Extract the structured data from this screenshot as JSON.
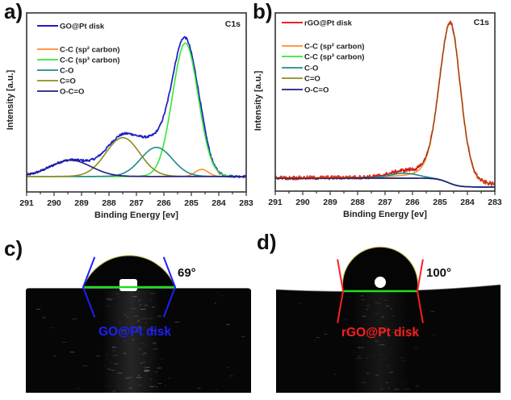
{
  "chart_data": [
    {
      "panel_label": "a)",
      "type": "line",
      "title": "C1s",
      "xlabel": "Binding Energy [ev]",
      "ylabel": "Intensity [a.u.]",
      "xlim": [
        291,
        283
      ],
      "ylim": [
        -0.11,
        1.16
      ],
      "x_reversed": true,
      "xticks": [
        291,
        290,
        289,
        288,
        287,
        286,
        285,
        284,
        283
      ],
      "x_minor_tick_step": 0.5,
      "yticks": [],
      "grid": false,
      "legend_position": "top-left",
      "background": {
        "type": "constant",
        "level": 0
      },
      "measured": {
        "name": "GO@Pt disk",
        "color": "#1d1dc6",
        "noise_amplitude": 0.008
      },
      "components": [
        {
          "name": "C-C (sp² carbon)",
          "color": "#ff8c2e",
          "center_ev": 284.62,
          "height": 0.05,
          "fwhm_ev": 0.55
        },
        {
          "name": "C-C (sp³ carbon)",
          "color": "#36e636",
          "center_ev": 285.22,
          "height": 0.945,
          "fwhm_ev": 1.1
        },
        {
          "name": "C-O",
          "color": "#1f8c8c",
          "center_ev": 286.27,
          "height": 0.206,
          "fwhm_ev": 1.35
        },
        {
          "name": "C=O",
          "color": "#8c8c22",
          "center_ev": 287.5,
          "height": 0.275,
          "fwhm_ev": 1.45
        },
        {
          "name": "O-C=O",
          "color": "#1c1c8c",
          "center_ev": 289.4,
          "height": 0.115,
          "fwhm_ev": 1.75
        }
      ],
      "fit_envelope": null
    },
    {
      "panel_label": "b)",
      "type": "line",
      "title": "C1s",
      "xlabel": "Binding Energy [ev]",
      "ylabel": "Intensity [a.u.]",
      "xlim": [
        291,
        283
      ],
      "ylim": [
        -0.025,
        1.06
      ],
      "x_reversed": true,
      "xticks": [
        291,
        290,
        289,
        288,
        287,
        286,
        285,
        284,
        283
      ],
      "x_minor_tick_step": 0.5,
      "yticks": [],
      "grid": false,
      "legend_position": "top-left",
      "background": {
        "type": "step",
        "high_ev_level": 0.054,
        "low_ev_level": 0,
        "center_ev": 284.7,
        "width_ev": 0.2
      },
      "measured": {
        "name": "rGO@Pt disk",
        "color": "#ee2020",
        "noise_amplitude": 0.012
      },
      "components": [
        {
          "name": "C-C (sp² carbon)",
          "color": "#ff8c2e",
          "center_ev": 284.62,
          "height": 0.98,
          "fwhm_ev": 0.92,
          "asymmetry": 0.04,
          "lorentz_fraction": 0.25
        },
        {
          "name": "C-C (sp³ carbon)",
          "color": "#36e636",
          "height": 0
        },
        {
          "name": "C-O",
          "color": "#1f8c8c",
          "center_ev": 286.3,
          "height": 0.03,
          "fwhm_ev": 1.2
        },
        {
          "name": "C=O",
          "color": "#8c8c22",
          "height": 0
        },
        {
          "name": "O-C=O",
          "color": "#1c1c8c",
          "height": 0
        }
      ],
      "fit_envelope": {
        "color": "#6a3812"
      }
    }
  ],
  "photos": [
    {
      "panel_label": "c)",
      "sample_label": "GO@Pt disk",
      "contact_angle_deg": 69,
      "contact_angle_text": "69°",
      "sample_label_color": "#1e1eff",
      "tangent_color": "#1e1eff",
      "baseline_color": "#22dd22"
    },
    {
      "panel_label": "d)",
      "sample_label": "rGO@Pt disk",
      "contact_angle_deg": 100,
      "contact_angle_text": "100°",
      "sample_label_color": "#ff1e1e",
      "tangent_color": "#ff1e1e",
      "baseline_color": "#22dd22"
    }
  ]
}
